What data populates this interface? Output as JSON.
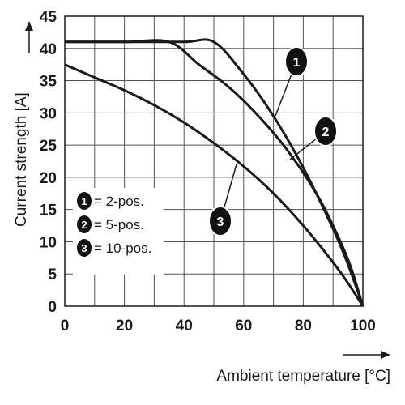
{
  "chart_data": {
    "type": "line",
    "title": "",
    "xlabel": "Ambient temperature [°C]",
    "ylabel": "Current strength [A]",
    "xlim": [
      0,
      100
    ],
    "ylim": [
      0,
      45
    ],
    "x_ticks": [
      "0",
      "20",
      "40",
      "60",
      "80",
      "100"
    ],
    "y_ticks": [
      "0",
      "5",
      "10",
      "15",
      "20",
      "25",
      "30",
      "35",
      "40",
      "45"
    ],
    "grid": true,
    "legend_position": "lower-left",
    "series": [
      {
        "name": "2-pos.",
        "badge": "1",
        "color": "#1a1a1a",
        "points": [
          [
            0,
            41
          ],
          [
            20,
            41
          ],
          [
            40,
            41
          ],
          [
            50,
            41
          ],
          [
            60,
            36
          ],
          [
            70,
            29.5
          ],
          [
            80,
            21.5
          ],
          [
            90,
            12
          ],
          [
            95,
            6.5
          ],
          [
            100,
            0
          ]
        ]
      },
      {
        "name": "5-pos.",
        "badge": "2",
        "color": "#1a1a1a",
        "points": [
          [
            0,
            41
          ],
          [
            20,
            41
          ],
          [
            35,
            41
          ],
          [
            45,
            37.5
          ],
          [
            55,
            34
          ],
          [
            65,
            29.5
          ],
          [
            75,
            24
          ],
          [
            85,
            17
          ],
          [
            92,
            10.5
          ],
          [
            96,
            6
          ],
          [
            100,
            0
          ]
        ]
      },
      {
        "name": "10-pos.",
        "badge": "3",
        "color": "#1a1a1a",
        "points": [
          [
            0,
            37.5
          ],
          [
            10,
            35.5
          ],
          [
            20,
            33.5
          ],
          [
            30,
            31.2
          ],
          [
            40,
            28.5
          ],
          [
            50,
            25.3
          ],
          [
            60,
            21.7
          ],
          [
            70,
            17.5
          ],
          [
            80,
            12.5
          ],
          [
            90,
            6.8
          ],
          [
            95,
            3.6
          ],
          [
            100,
            0
          ]
        ]
      }
    ]
  }
}
